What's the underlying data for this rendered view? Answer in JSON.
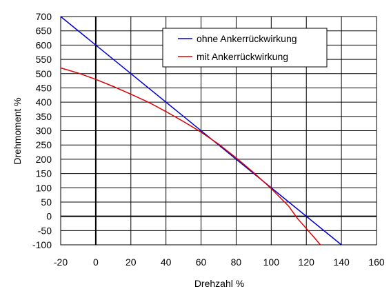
{
  "chart_data": {
    "type": "line",
    "xlabel": "Drehzahl %",
    "ylabel": "Drehmoment %",
    "xlim": [
      -20,
      160
    ],
    "ylim": [
      -100,
      700
    ],
    "xticks": [
      -20,
      0,
      20,
      40,
      60,
      80,
      100,
      120,
      140,
      160
    ],
    "yticks": [
      -100,
      -50,
      0,
      50,
      100,
      150,
      200,
      250,
      300,
      350,
      400,
      450,
      500,
      550,
      600,
      650,
      700
    ],
    "grid": true,
    "legend_position": "top-right",
    "series": [
      {
        "name": "ohne Ankerrückwirkung",
        "color": "#0000cc",
        "x": [
          -20,
          140
        ],
        "y": [
          700,
          -100
        ]
      },
      {
        "name": "mit Ankerrückwirkung",
        "color": "#dd0000",
        "x": [
          -20,
          -10,
          0,
          10,
          20,
          30,
          40,
          50,
          60,
          70,
          80,
          90,
          100,
          110,
          115,
          120,
          125,
          128
        ],
        "y": [
          520,
          502,
          480,
          455,
          428,
          400,
          367,
          332,
          295,
          253,
          205,
          153,
          97,
          35,
          -8,
          -43,
          -78,
          -100
        ]
      }
    ]
  }
}
